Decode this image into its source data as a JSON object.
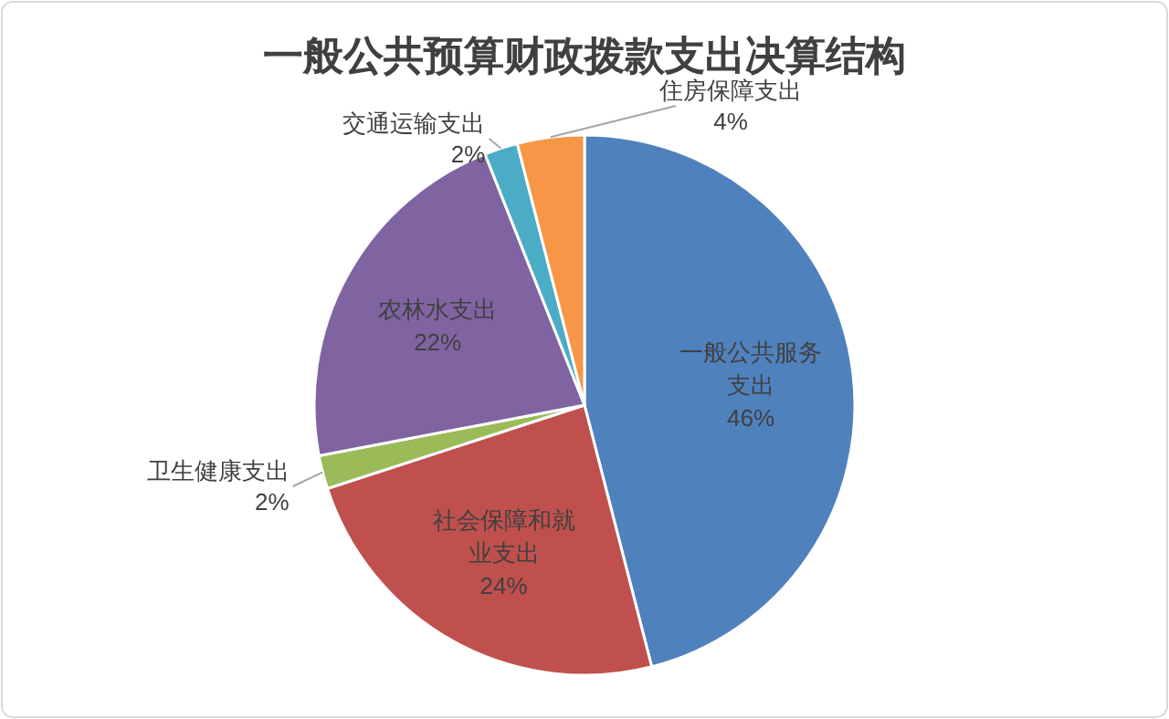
{
  "chart_data": {
    "type": "pie",
    "title": "一般公共预算财政拨款支出决算结构",
    "categories": [
      "一般公共服务支出",
      "社会保障和就业支出",
      "卫生健康支出",
      "农林水支出",
      "交通运输支出",
      "住房保障支出"
    ],
    "values": [
      46,
      24,
      2,
      22,
      2,
      4
    ],
    "colors": [
      "#4f81bd",
      "#c0504d",
      "#9bbb59",
      "#8064a2",
      "#4bacc6",
      "#f79646"
    ],
    "value_labels": [
      "46%",
      "24%",
      "2%",
      "22%",
      "2%",
      "4%"
    ],
    "legend": false
  }
}
